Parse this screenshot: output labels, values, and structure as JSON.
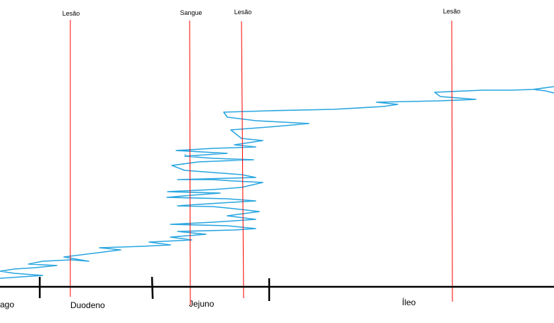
{
  "markers": [
    {
      "label": "Lesão",
      "color": "#ff0000"
    },
    {
      "label": "Sangue",
      "color": "#ff0000"
    },
    {
      "label": "Lesão",
      "color": "#ff0000"
    },
    {
      "label": "Lesão",
      "color": "#ff0000"
    }
  ],
  "sections": [
    {
      "label": "ago"
    },
    {
      "label": "Duodeno"
    },
    {
      "label": "Jejuno"
    },
    {
      "label": "Íleo"
    }
  ],
  "colors": {
    "trace": "#2aa6e0",
    "axis": "#000000",
    "marker": "#ff0000"
  }
}
